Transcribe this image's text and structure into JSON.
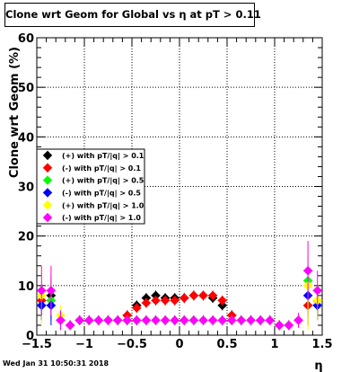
{
  "chart_data": {
    "type": "scatter",
    "title": "Clone wrt Geom for Global vs   η at pT > 0.11",
    "xlabel": "η",
    "ylabel": "Clone wrt Geom (%)",
    "xlim": [
      -1.5,
      1.5
    ],
    "ylim": [
      0,
      60
    ],
    "x_ticks": [
      "−1.5",
      "−1",
      "−0.5",
      "0",
      "0.5",
      "1",
      "1.5"
    ],
    "y_ticks": [
      "0",
      "10",
      "20",
      "30",
      "40",
      "50",
      "60"
    ],
    "grid": true,
    "legend_position": "middle-left",
    "series": [
      {
        "name": "(+) with pT/|q| > 0.1",
        "color": "#000000",
        "x": [
          -1.45,
          -1.35,
          -1.25,
          -1.15,
          -1.05,
          -0.95,
          -0.85,
          -0.75,
          -0.65,
          -0.55,
          -0.45,
          -0.35,
          -0.25,
          -0.15,
          -0.05,
          0.05,
          0.15,
          0.25,
          0.35,
          0.45,
          0.55,
          0.65,
          0.75,
          0.85,
          0.95,
          1.05,
          1.15,
          1.25,
          1.35,
          1.45
        ],
        "y": [
          6,
          8,
          3,
          2,
          3,
          3,
          3,
          3,
          3,
          4,
          6,
          7.5,
          8,
          7.5,
          7.5,
          7.5,
          8,
          8,
          7.5,
          6,
          4,
          3,
          3,
          3,
          3,
          2,
          2,
          3,
          6,
          7
        ],
        "err": [
          3,
          4,
          1.5,
          1,
          1,
          1,
          1,
          1,
          1,
          1,
          1,
          1,
          1,
          1,
          1,
          1,
          1,
          1,
          1,
          1,
          1,
          1,
          1,
          1,
          1,
          1,
          1,
          1.5,
          4,
          3
        ]
      },
      {
        "name": "(-) with pT/|q| > 0.1",
        "color": "#ff0000",
        "x": [
          -1.45,
          -1.35,
          -1.25,
          -1.15,
          -1.05,
          -0.95,
          -0.85,
          -0.75,
          -0.65,
          -0.55,
          -0.45,
          -0.35,
          -0.25,
          -0.15,
          -0.05,
          0.05,
          0.15,
          0.25,
          0.35,
          0.45,
          0.55,
          0.65,
          0.75,
          0.85,
          0.95,
          1.05,
          1.15,
          1.25,
          1.35,
          1.45
        ],
        "y": [
          7,
          7,
          3,
          2,
          3,
          3,
          3,
          3,
          3,
          4,
          5.5,
          6.5,
          7,
          7,
          7,
          7.5,
          8,
          8,
          8,
          7,
          4,
          3,
          3,
          3,
          3,
          2,
          2,
          3,
          6,
          7
        ],
        "err": [
          3,
          4,
          1.5,
          1,
          1,
          1,
          1,
          1,
          1,
          1,
          1,
          1,
          1,
          1,
          1,
          1,
          1,
          1,
          1,
          1,
          1,
          1,
          1,
          1,
          1,
          1,
          1,
          1.5,
          4,
          3
        ]
      },
      {
        "name": "(+) with pT/|q| > 0.5",
        "color": "#00ff00",
        "x": [
          -1.45,
          -1.35,
          -1.25,
          -1.15,
          -1.05,
          -0.95,
          -0.85,
          -0.75,
          -0.65,
          -0.55,
          -0.45,
          -0.35,
          -0.25,
          -0.15,
          -0.05,
          0.05,
          0.15,
          0.25,
          0.35,
          0.45,
          0.55,
          0.65,
          0.75,
          0.85,
          0.95,
          1.05,
          1.15,
          1.25,
          1.35,
          1.45
        ],
        "y": [
          6,
          7,
          3,
          2,
          3,
          3,
          3,
          3,
          3,
          3,
          3,
          3,
          3,
          3,
          3,
          3,
          3,
          3,
          3,
          3,
          3,
          3,
          3,
          3,
          3,
          2,
          2,
          3,
          11,
          6
        ],
        "err": [
          3,
          4,
          1.5,
          1,
          1,
          1,
          1,
          1,
          1,
          1,
          1,
          1,
          1,
          1,
          1,
          1,
          1,
          1,
          1,
          1,
          1,
          1,
          1,
          1,
          1,
          1,
          1,
          1.5,
          5,
          3
        ]
      },
      {
        "name": "(-) with pT/|q| > 0.5",
        "color": "#0000ff",
        "x": [
          -1.45,
          -1.35,
          -1.25,
          -1.15,
          -1.05,
          -0.95,
          -0.85,
          -0.75,
          -0.65,
          -0.55,
          -0.45,
          -0.35,
          -0.25,
          -0.15,
          -0.05,
          0.05,
          0.15,
          0.25,
          0.35,
          0.45,
          0.55,
          0.65,
          0.75,
          0.85,
          0.95,
          1.05,
          1.15,
          1.25,
          1.35,
          1.45
        ],
        "y": [
          6,
          6,
          3,
          2,
          3,
          3,
          3,
          3,
          3,
          3,
          3,
          3,
          3,
          3,
          3,
          3,
          3,
          3,
          3,
          3,
          3,
          3,
          3,
          3,
          3,
          2,
          2,
          3,
          8,
          6
        ],
        "err": [
          3,
          4,
          1.5,
          1,
          1,
          1,
          1,
          1,
          1,
          1,
          1,
          1,
          1,
          1,
          1,
          1,
          1,
          1,
          1,
          1,
          1,
          1,
          1,
          1,
          1,
          1,
          1,
          1.5,
          4,
          3
        ]
      },
      {
        "name": "(+) with pT/|q| > 1.0",
        "color": "#ffff00",
        "x": [
          -1.45,
          -1.35,
          -1.25,
          -1.15,
          -1.05,
          -0.95,
          -0.85,
          -0.75,
          -0.65,
          -0.55,
          -0.45,
          -0.35,
          -0.25,
          -0.15,
          -0.05,
          0.05,
          0.15,
          0.25,
          0.35,
          0.45,
          0.55,
          0.65,
          0.75,
          0.85,
          0.95,
          1.05,
          1.15,
          1.25,
          1.35,
          1.45
        ],
        "y": [
          8,
          9,
          4,
          2,
          3,
          3,
          3,
          3,
          3,
          3,
          3,
          3,
          3,
          3,
          3,
          3,
          3,
          3,
          3,
          3,
          3,
          3,
          3,
          3,
          3,
          2,
          2,
          3,
          10,
          7
        ],
        "err": [
          6,
          5,
          2,
          1,
          1,
          1,
          1,
          1,
          1,
          1,
          1,
          1,
          1,
          1,
          1,
          1,
          1,
          1,
          1,
          1,
          1,
          1,
          1,
          1,
          1,
          1,
          1,
          1.5,
          9,
          4
        ]
      },
      {
        "name": "(-) with pT/|q| > 1.0",
        "color": "#ff00ff",
        "x": [
          -1.45,
          -1.35,
          -1.25,
          -1.15,
          -1.05,
          -0.95,
          -0.85,
          -0.75,
          -0.65,
          -0.55,
          -0.45,
          -0.35,
          -0.25,
          -0.15,
          -0.05,
          0.05,
          0.15,
          0.25,
          0.35,
          0.45,
          0.55,
          0.65,
          0.75,
          0.85,
          0.95,
          1.05,
          1.15,
          1.25,
          1.35,
          1.45
        ],
        "y": [
          9,
          9,
          3,
          2,
          3,
          3,
          3,
          3,
          3,
          3,
          3,
          3,
          3,
          3,
          3,
          3,
          3,
          3,
          3,
          3,
          3,
          3,
          3,
          3,
          3,
          2,
          2,
          3,
          13,
          9
        ],
        "err": [
          5,
          5,
          2,
          1,
          1,
          1,
          1,
          1,
          1,
          1,
          1,
          1,
          1,
          1,
          1,
          1,
          1,
          1,
          1,
          1,
          1,
          1,
          1,
          1,
          1,
          1,
          1,
          1.5,
          6,
          4
        ]
      }
    ]
  },
  "footer": {
    "timestamp": "Wed Jan 31 10:50:31 2018"
  }
}
